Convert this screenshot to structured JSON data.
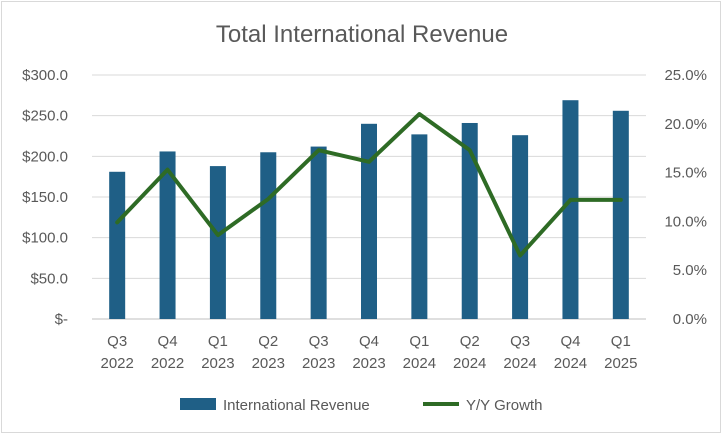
{
  "chart_data": {
    "type": "bar+line",
    "title": "Total International Revenue",
    "categories": [
      [
        "Q3",
        "2022"
      ],
      [
        "Q4",
        "2022"
      ],
      [
        "Q1",
        "2023"
      ],
      [
        "Q2",
        "2023"
      ],
      [
        "Q3",
        "2023"
      ],
      [
        "Q4",
        "2023"
      ],
      [
        "Q1",
        "2024"
      ],
      [
        "Q2",
        "2024"
      ],
      [
        "Q3",
        "2024"
      ],
      [
        "Q4",
        "2024"
      ],
      [
        "Q1",
        "2025"
      ]
    ],
    "series": [
      {
        "name": "International Revenue",
        "type": "bar",
        "axis": "left",
        "color": "#1f5f86",
        "values": [
          181,
          206,
          188,
          205,
          212,
          240,
          227,
          241,
          226,
          269,
          256
        ]
      },
      {
        "name": "Y/Y Growth",
        "type": "line",
        "axis": "right",
        "color": "#2e6b25",
        "values": [
          0.099,
          0.153,
          0.086,
          0.123,
          0.173,
          0.161,
          0.21,
          0.173,
          0.065,
          0.122,
          0.122
        ]
      }
    ],
    "y_left": {
      "min": 0,
      "max": 300,
      "step": 50,
      "tick_labels": [
        "$-",
        "$50.0",
        "$100.0",
        "$150.0",
        "$200.0",
        "$250.0",
        "$300.0"
      ]
    },
    "y_right": {
      "min": 0,
      "max": 0.25,
      "step": 0.05,
      "tick_labels": [
        "0.0%",
        "5.0%",
        "10.0%",
        "15.0%",
        "20.0%",
        "25.0%"
      ]
    },
    "grid": true,
    "legend_position": "bottom"
  }
}
